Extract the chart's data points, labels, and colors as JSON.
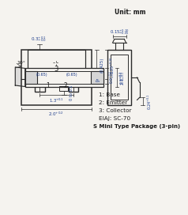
{
  "title": "Unit: mm",
  "bg_color": "#f5f3ef",
  "line_color": "#2b2b2b",
  "dim_color": "#1a3a8a",
  "text_color": "#1a1a1a",
  "legend_items": [
    "1: Base",
    "2: Emitter",
    "3: Collector",
    "EIAJ: SC-70"
  ],
  "package_label": "S Mini Type Package (3-pin)"
}
